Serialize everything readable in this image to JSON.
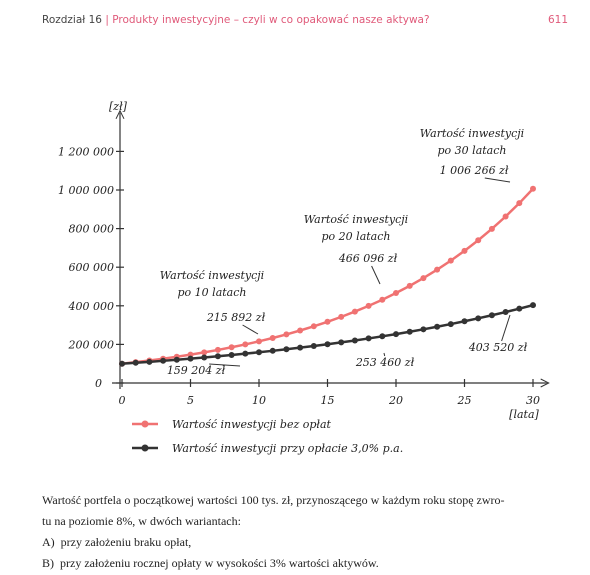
{
  "header": {
    "chapter": "Rozdział 16",
    "separator": "|",
    "topic": "Produkty inwestycyjne – czyli w co opakować nasze aktywa?",
    "page_number": "611"
  },
  "chart_data": {
    "type": "line",
    "x_label": "[lata]",
    "y_label": "[zł]",
    "x": [
      0,
      1,
      2,
      3,
      4,
      5,
      6,
      7,
      8,
      9,
      10,
      11,
      12,
      13,
      14,
      15,
      16,
      17,
      18,
      19,
      20,
      21,
      22,
      23,
      24,
      25,
      26,
      27,
      28,
      29,
      30
    ],
    "series": [
      {
        "name": "Wartość inwestycji bez opłat",
        "color": "#f07272",
        "values": [
          100000,
          108000,
          116640,
          125971,
          136049,
          146933,
          158687,
          171382,
          185093,
          199900,
          215892,
          233164,
          251817,
          271962,
          293719,
          317217,
          342594,
          370002,
          399602,
          431570,
          466096,
          503383,
          543654,
          587146,
          634118,
          684848,
          739635,
          798806,
          862711,
          931727,
          1006266
        ],
        "value_labels": [
          null,
          null,
          null,
          null,
          null,
          null,
          null,
          null,
          null,
          null,
          "215 892 zł",
          null,
          null,
          null,
          null,
          null,
          null,
          null,
          null,
          null,
          "466 096 zł",
          null,
          null,
          null,
          null,
          null,
          null,
          null,
          null,
          null,
          "1 006 266 zł"
        ]
      },
      {
        "name": "Wartość inwestycji przy opłacie 3,0% p.a.",
        "color": "#333333",
        "values": [
          100000,
          104760,
          109747,
          114971,
          120443,
          126176,
          132182,
          138474,
          145066,
          151971,
          159204,
          166783,
          174721,
          183038,
          191751,
          200878,
          210440,
          220457,
          230951,
          241944,
          253460,
          265525,
          278164,
          291405,
          305275,
          319807,
          335029,
          350977,
          367683,
          385185,
          403520
        ],
        "value_labels": [
          null,
          null,
          null,
          null,
          null,
          null,
          null,
          null,
          null,
          null,
          "159 204 zł",
          null,
          null,
          null,
          null,
          null,
          null,
          null,
          null,
          null,
          "253 460 zł",
          null,
          null,
          null,
          null,
          null,
          null,
          null,
          null,
          null,
          "403 520 zł"
        ]
      }
    ],
    "annotations": [
      {
        "lines": [
          "Wartość inwestycji",
          "po 10 latach"
        ]
      },
      {
        "lines": [
          "Wartość inwestycji",
          "po 20 latach"
        ]
      },
      {
        "lines": [
          "Wartość inwestycji",
          "po 30 latach"
        ]
      }
    ],
    "xlim": [
      0,
      31
    ],
    "xticks": [
      0,
      5,
      10,
      15,
      20,
      25,
      30
    ],
    "ylim": [
      0,
      1400000
    ],
    "yticks": [
      0,
      {
        "value": 200000,
        "label": "200 000"
      },
      {
        "value": 400000,
        "label": "400 000"
      },
      {
        "value": 600000,
        "label": "600 000"
      },
      {
        "value": 800000,
        "label": "800 000"
      },
      {
        "value": 1000000,
        "label": "1 000 000"
      },
      {
        "value": 1200000,
        "label": "1 200 000"
      }
    ],
    "legend": "bottom-left"
  },
  "caption": {
    "lines": [
      "Wartość portfela o początkowej wartości 100 tys. zł, przynoszącego w każdym roku stopę zwro-",
      "tu na poziomie 8%, w dwóch wariantach:"
    ],
    "items": [
      {
        "marker": "A)",
        "text": "przy założeniu braku opłat,"
      },
      {
        "marker": "B)",
        "text": "przy założeniu rocznej opłaty w wysokości 3% wartości aktywów."
      }
    ]
  }
}
